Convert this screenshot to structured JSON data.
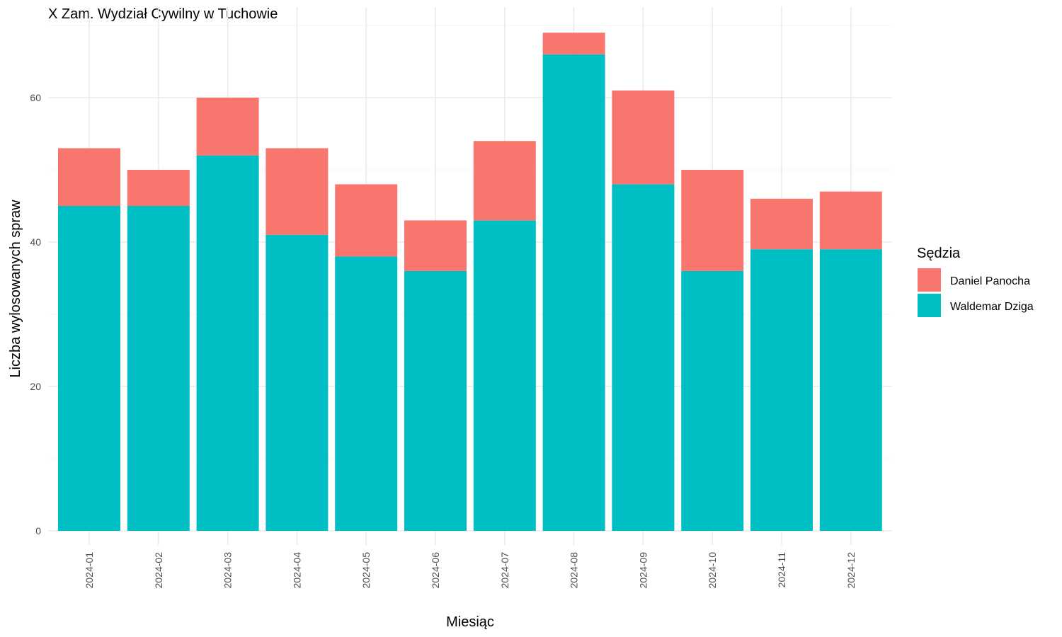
{
  "chart_data": {
    "type": "bar",
    "stacked": true,
    "title": "X Zam. Wydział Cywilny w Tuchowie",
    "xlabel": "Miesiąc",
    "ylabel": "Liczba wylosowanych spraw",
    "categories": [
      "2024-01",
      "2024-02",
      "2024-03",
      "2024-04",
      "2024-05",
      "2024-06",
      "2024-07",
      "2024-08",
      "2024-09",
      "2024-10",
      "2024-11",
      "2024-12"
    ],
    "series": [
      {
        "name": "Waldemar Dziga",
        "color": "#00bfc4",
        "values": [
          45,
          45,
          52,
          41,
          38,
          36,
          43,
          66,
          48,
          36,
          39,
          39
        ]
      },
      {
        "name": "Daniel Panocha",
        "color": "#f8766d",
        "values": [
          8,
          5,
          8,
          12,
          10,
          7,
          11,
          3,
          13,
          14,
          7,
          8
        ]
      }
    ],
    "ylim": [
      0,
      70
    ],
    "yticks": [
      0,
      20,
      40,
      60
    ],
    "grid": true,
    "legend": {
      "title": "Sędzia",
      "position": "right",
      "entries": [
        "Daniel Panocha",
        "Waldemar Dziga"
      ]
    }
  }
}
